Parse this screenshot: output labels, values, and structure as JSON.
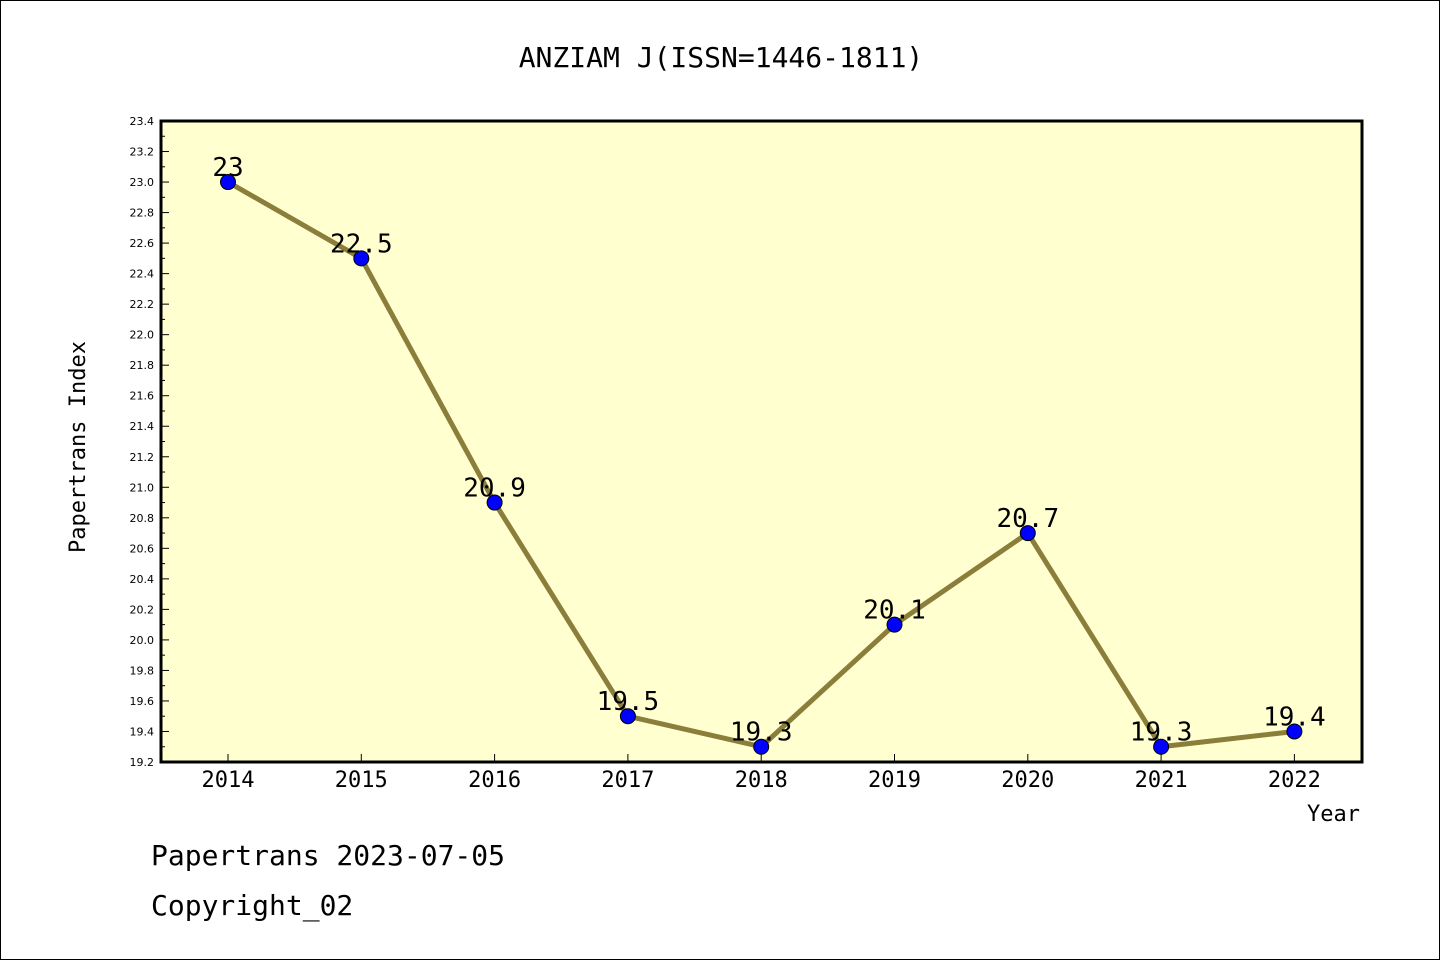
{
  "chart_data": {
    "type": "line",
    "title": "ANZIAM J(ISSN=1446-1811)",
    "xlabel": "Year",
    "ylabel": "Papertrans Index",
    "categories": [
      "2014",
      "2015",
      "2016",
      "2017",
      "2018",
      "2019",
      "2020",
      "2021",
      "2022"
    ],
    "series": [
      {
        "values": [
          23,
          22.5,
          20.9,
          19.5,
          19.3,
          20.1,
          20.7,
          19.3,
          19.4
        ],
        "labels": [
          "23",
          "22.5",
          "20.9",
          "19.5",
          "19.3",
          "20.1",
          "20.7",
          "19.3",
          "19.4"
        ]
      }
    ],
    "ylim": [
      19.2,
      23.4
    ],
    "yticks": [
      "19.2",
      "19.4",
      "19.6",
      "19.8",
      "20.0",
      "20.2",
      "20.4",
      "20.6",
      "20.8",
      "21.0",
      "21.2",
      "21.4",
      "21.6",
      "21.8",
      "22.0",
      "22.2",
      "22.4",
      "22.6",
      "22.8",
      "23.0",
      "23.2",
      "23.4"
    ],
    "grid": false,
    "legend": "none",
    "colors": {
      "plot_background": "#ffffd0",
      "line": "#8b7d3a",
      "marker": "#0000ff"
    }
  },
  "footer": {
    "line1": "Papertrans 2023-07-05",
    "line2": "Copyright_02"
  }
}
